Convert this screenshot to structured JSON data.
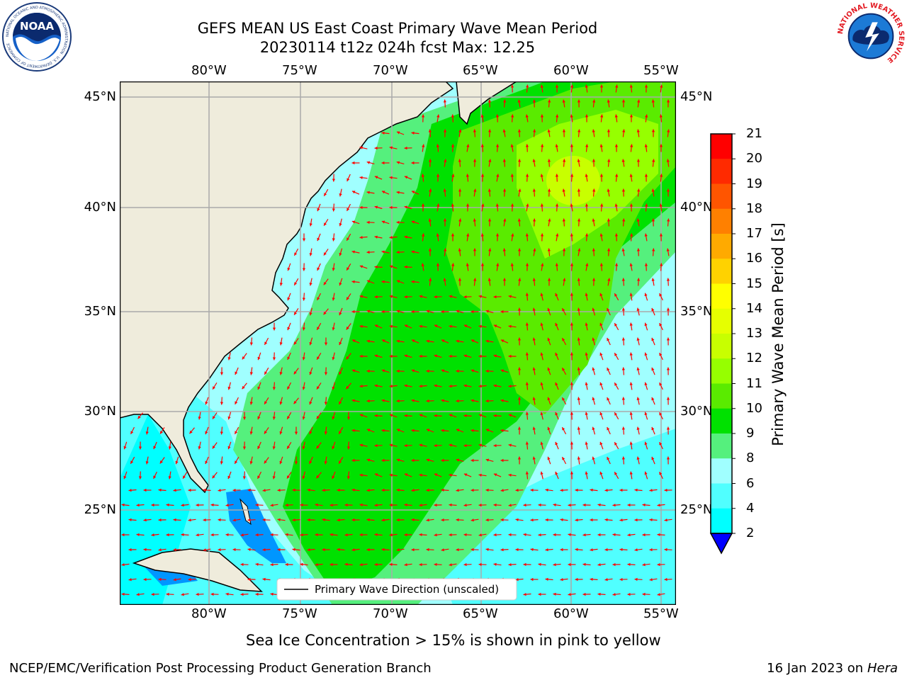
{
  "header": {
    "title_line1": "GEFS MEAN US East Coast Primary Wave Mean Period",
    "title_line2": "20230114 t12z 024h fcst   Max: 12.25",
    "noaa_logo_text": "NOAA",
    "noaa_ring_text": "NATIONAL OCEANIC AND ATMOSPHERIC ADMINISTRATION · U.S. DEPARTMENT OF COMMERCE",
    "nws_ring_text": "NATIONAL WEATHER SERVICE"
  },
  "map": {
    "lon_labels": [
      "80°W",
      "75°W",
      "70°W",
      "65°W",
      "60°W",
      "55°W"
    ],
    "lat_labels": [
      "45°N",
      "40°N",
      "35°N",
      "30°N",
      "25°N"
    ],
    "legend_label": "Primary Wave Direction (unscaled)",
    "arrow_color": "#ff0000",
    "land_color": "#efecdc"
  },
  "colorbar": {
    "label": "Primary Wave Mean Period [s]",
    "ticks": [
      "21",
      "20",
      "19",
      "18",
      "17",
      "16",
      "15",
      "14",
      "13",
      "12",
      "11",
      "10",
      "9",
      "8",
      "6",
      "4",
      "2"
    ],
    "colors": [
      "#ff0000",
      "#ff2a00",
      "#ff5500",
      "#ff8000",
      "#ffaa00",
      "#ffd200",
      "#ffff00",
      "#e6ff00",
      "#c8ff00",
      "#96ff00",
      "#5aeb00",
      "#00e100",
      "#55f07d",
      "#a0ffff",
      "#50ffff",
      "#00ffff",
      "#0096ff"
    ],
    "under_color": "#0000ff"
  },
  "footer": {
    "subtitle": "Sea Ice Concentration > 15% is shown in pink to yellow",
    "credit": "NCEP/EMC/Verification Post Processing Product Generation Branch",
    "date_prefix": "16 Jan 2023 on ",
    "machine": "Hera"
  }
}
